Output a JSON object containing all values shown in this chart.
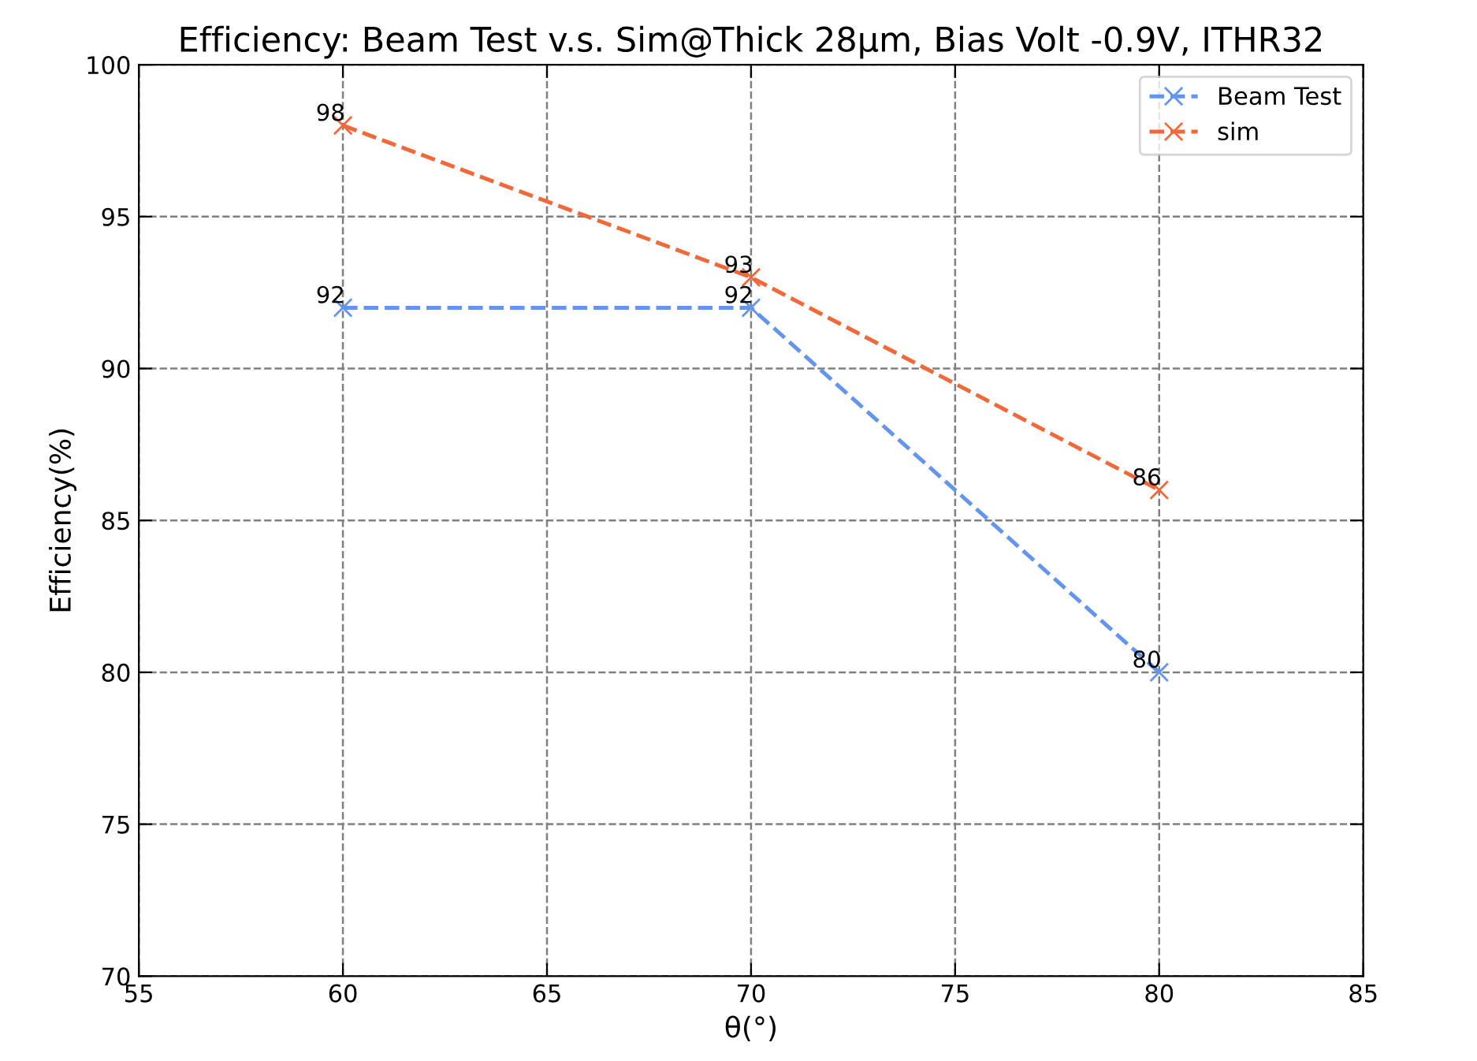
{
  "chart_data": {
    "type": "line",
    "title": "Efficiency: Beam Test v.s. Sim@Thick 28μm, Bias Volt -0.9V, ITHR32",
    "xlabel": "θ(°)",
    "ylabel": "Efficiency(%)",
    "x": [
      60,
      70,
      80
    ],
    "series": [
      {
        "name": "Beam Test",
        "color": "#6495ed",
        "values": [
          92,
          92,
          80
        ]
      },
      {
        "name": "sim",
        "color": "#f0693a",
        "values": [
          98,
          93,
          86
        ]
      }
    ],
    "xlim": [
      55,
      85
    ],
    "xticks": [
      55,
      60,
      65,
      70,
      75,
      80,
      85
    ],
    "ylim": [
      70,
      100
    ],
    "yticks": [
      70,
      75,
      80,
      85,
      90,
      95,
      100
    ],
    "grid": true,
    "legend": "top right",
    "marker": "cross",
    "line_style": "dashed",
    "data_labels": true
  }
}
